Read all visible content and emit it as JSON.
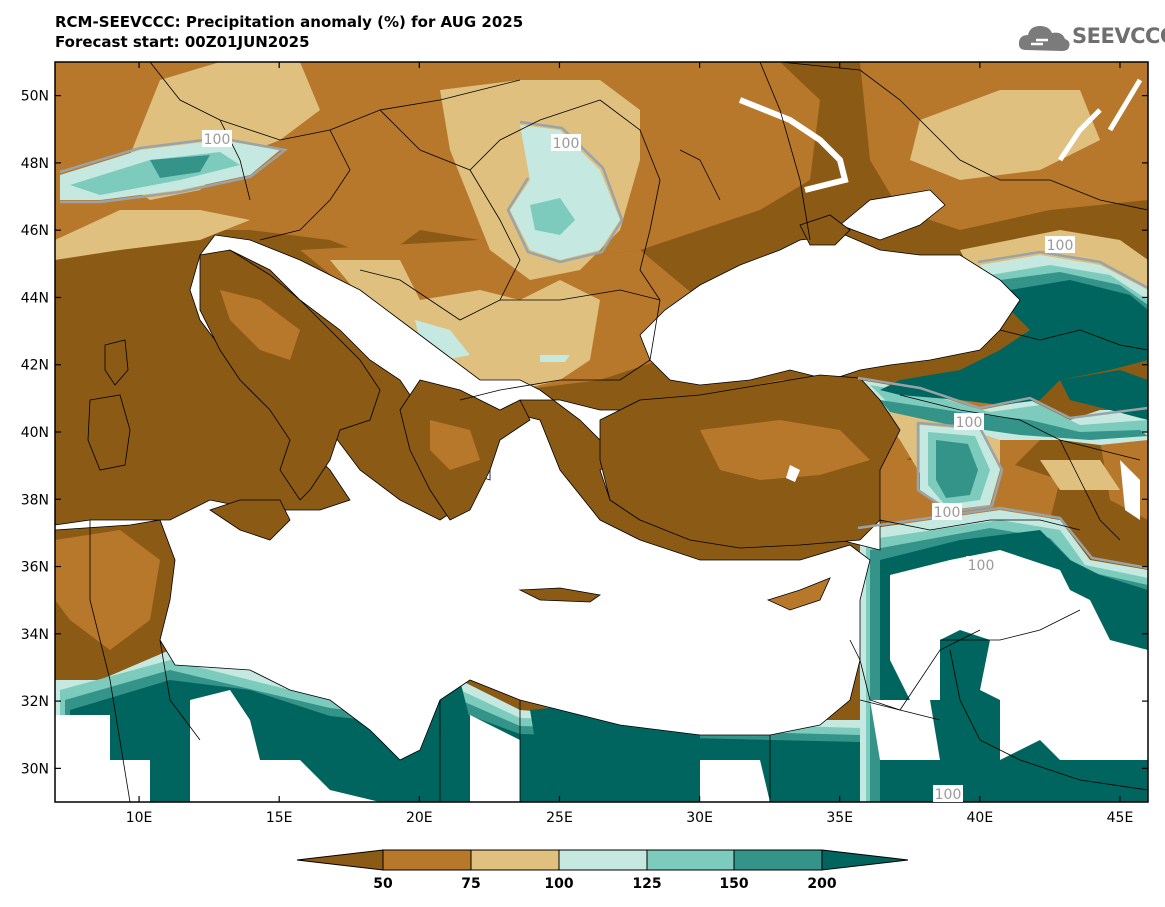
{
  "title": {
    "line1": "RCM-SEEVCCC: Precipitation anomaly (%) for AUG 2025",
    "line2": "Forecast start: 00Z01JUN2025"
  },
  "logo": {
    "icon": "cloud-icon",
    "text": "SEEVCCC"
  },
  "map": {
    "lon_range": [
      7,
      46
    ],
    "lat_range": [
      29,
      51
    ],
    "lat_labels": [
      "50N",
      "48N",
      "46N",
      "44N",
      "42N",
      "40N",
      "38N",
      "36N",
      "34N",
      "32N",
      "30N"
    ],
    "lon_labels": [
      "10E",
      "15E",
      "20E",
      "25E",
      "30E",
      "35E",
      "40E",
      "45E"
    ],
    "contour_labels": [
      "100",
      "100",
      "100",
      "100",
      "100",
      "100",
      "100"
    ]
  },
  "colorbar": {
    "colors": [
      "#8b5a14",
      "#b8782b",
      "#dfc07f",
      "#c5e9e0",
      "#7dcbbd",
      "#35948a",
      "#00655e"
    ],
    "labels": [
      "50",
      "75",
      "100",
      "125",
      "150",
      "200"
    ]
  }
}
